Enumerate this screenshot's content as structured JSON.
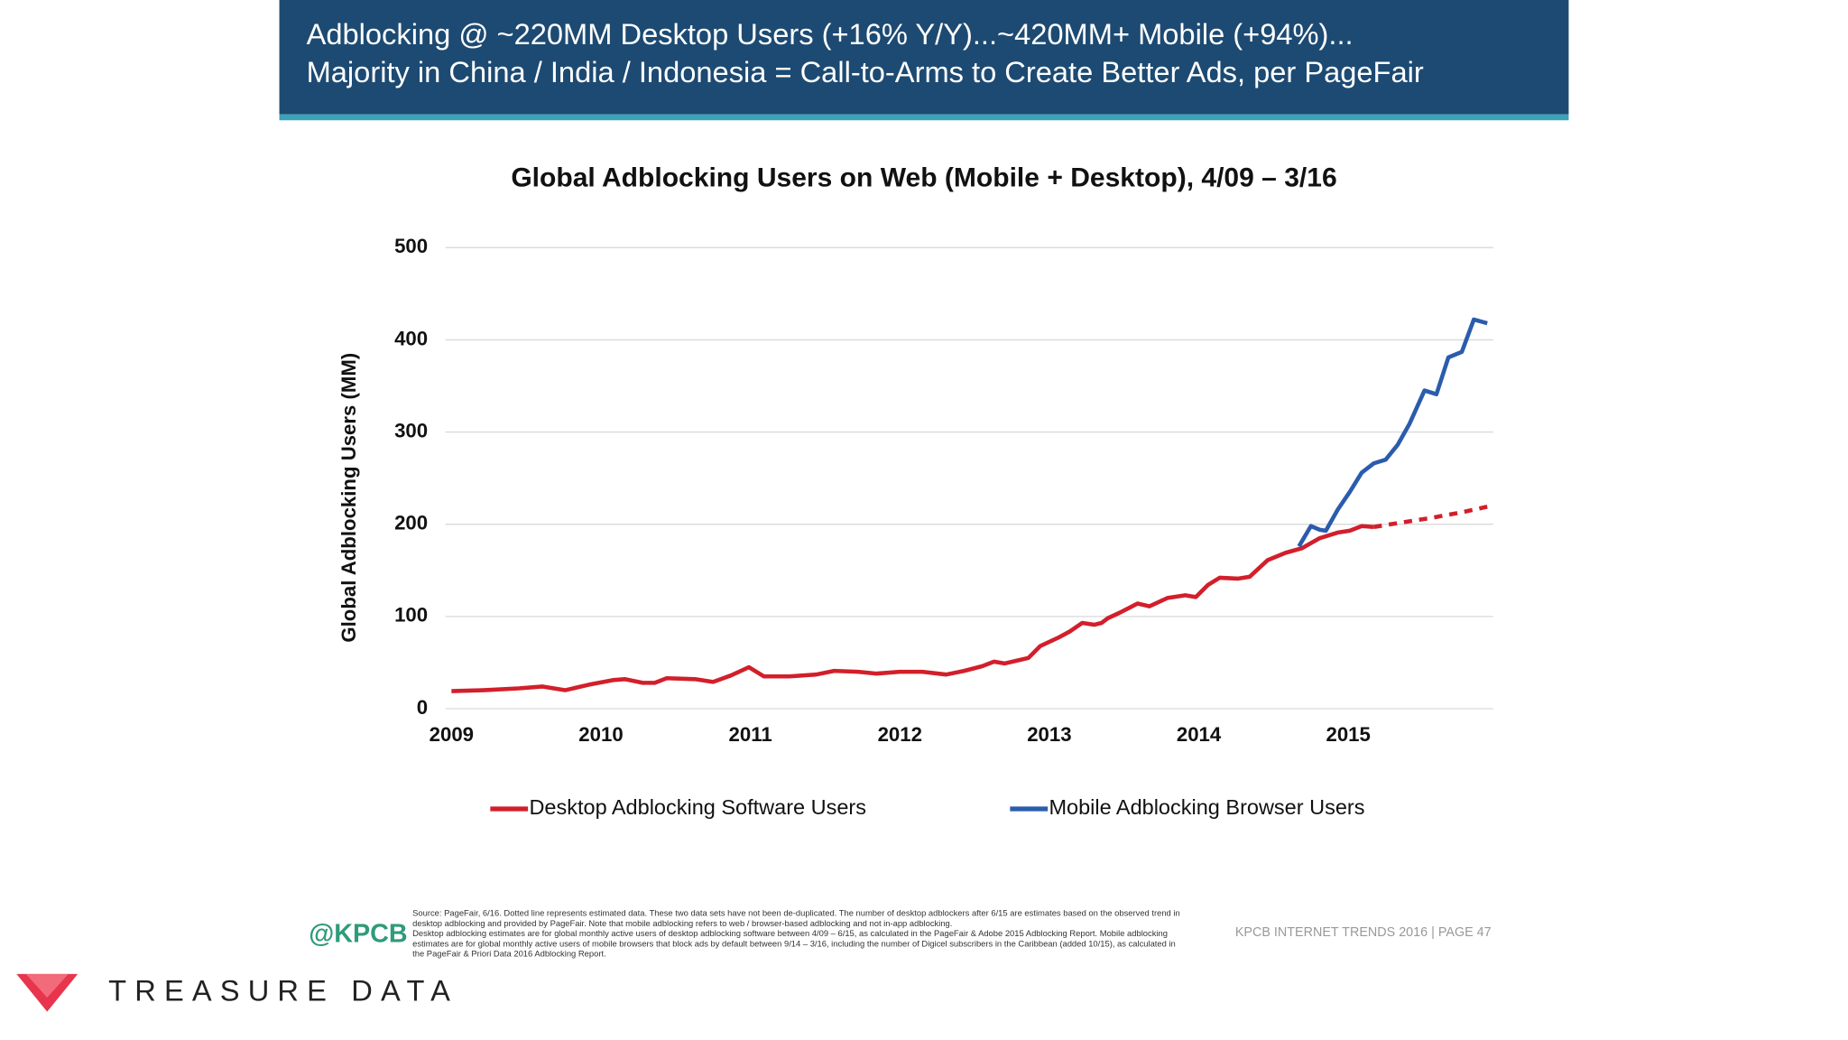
{
  "header": {
    "lines": [
      "Adblocking @ ~220MM Desktop Users (+16% Y/Y)...~420MM+ Mobile (+94%)...",
      "Majority in China / India / Indonesia = Call-to-Arms to Create Better Ads, per PageFair"
    ]
  },
  "chart_data": {
    "type": "line",
    "title": "Global Adblocking Users on Web (Mobile + Desktop), 4/09 – 3/16",
    "ylabel": "Global Adblocking Users (MM)",
    "xlim": [
      2008.96,
      2015.97
    ],
    "xticks": [
      2009,
      2010,
      2011,
      2012,
      2013,
      2014,
      2015
    ],
    "ylim": [
      0,
      500
    ],
    "yticks": [
      0,
      100,
      200,
      300,
      400,
      500
    ],
    "grid": true,
    "series": [
      {
        "name": "Desktop Adblocking Software Users",
        "color": "#d21f2b",
        "estimated_from": 2015.17,
        "x": [
          2009.0,
          2009.21,
          2009.45,
          2009.61,
          2009.76,
          2009.92,
          2010.08,
          2010.16,
          2010.28,
          2010.36,
          2010.44,
          2010.63,
          2010.75,
          2010.87,
          2010.99,
          2011.09,
          2011.26,
          2011.44,
          2011.56,
          2011.72,
          2011.84,
          2012.0,
          2012.15,
          2012.31,
          2012.43,
          2012.55,
          2012.63,
          2012.7,
          2012.78,
          2012.86,
          2012.94,
          2013.06,
          2013.14,
          2013.22,
          2013.3,
          2013.35,
          2013.39,
          2013.47,
          2013.59,
          2013.67,
          2013.79,
          2013.91,
          2013.98,
          2014.06,
          2014.14,
          2014.26,
          2014.34,
          2014.46,
          2014.58,
          2014.69,
          2014.81,
          2014.93,
          2015.01,
          2015.09,
          2015.17,
          2015.36,
          2015.56,
          2015.76,
          2015.93
        ],
        "values": [
          19,
          20,
          22,
          24,
          20,
          26,
          31,
          32,
          28,
          28,
          33,
          32,
          29,
          36,
          45,
          35,
          35,
          37,
          41,
          40,
          38,
          40,
          40,
          37,
          41,
          46,
          51,
          49,
          52,
          55,
          68,
          77,
          84,
          93,
          91,
          93,
          98,
          104,
          114,
          111,
          120,
          123,
          121,
          134,
          142,
          141,
          143,
          161,
          169,
          174,
          185,
          191,
          193,
          198,
          197,
          202,
          207,
          213,
          219
        ]
      },
      {
        "name": "Mobile Adblocking Browser Users",
        "color": "#2b5cac",
        "x": [
          2014.67,
          2014.75,
          2014.81,
          2014.85,
          2014.93,
          2015.01,
          2015.09,
          2015.17,
          2015.25,
          2015.33,
          2015.41,
          2015.51,
          2015.59,
          2015.67,
          2015.76,
          2015.84,
          2015.93
        ],
        "values": [
          176,
          198,
          194,
          193,
          216,
          235,
          256,
          266,
          270,
          286,
          309,
          345,
          341,
          381,
          387,
          422,
          418
        ]
      }
    ]
  },
  "footer": {
    "handle": "@KPCB",
    "source": [
      "Source: PageFair, 6/16. Dotted line represents estimated data. These two data sets have not been de-duplicated. The number of desktop adblockers after 6/15 are estimates based on the observed trend in",
      "desktop adblocking and provided by PageFair. Note that mobile adblocking refers to web / browser-based adblocking and not in-app adblocking.",
      "Desktop adblocking estimates are for global monthly active users of desktop adblocking software between 4/09 – 6/15, as calculated in the PageFair & Adobe 2015 Adblocking Report. Mobile adblocking",
      "estimates are for global monthly active users of mobile browsers that block ads by default between 9/14 – 3/16, including the number of Digicel subscribers in the Caribbean (added 10/15), as calculated in",
      "the PageFair & Priori Data 2016 Adblocking Report."
    ],
    "page": "KPCB INTERNET TRENDS 2016  |  PAGE 47",
    "brand": "TREASURE DATA"
  }
}
